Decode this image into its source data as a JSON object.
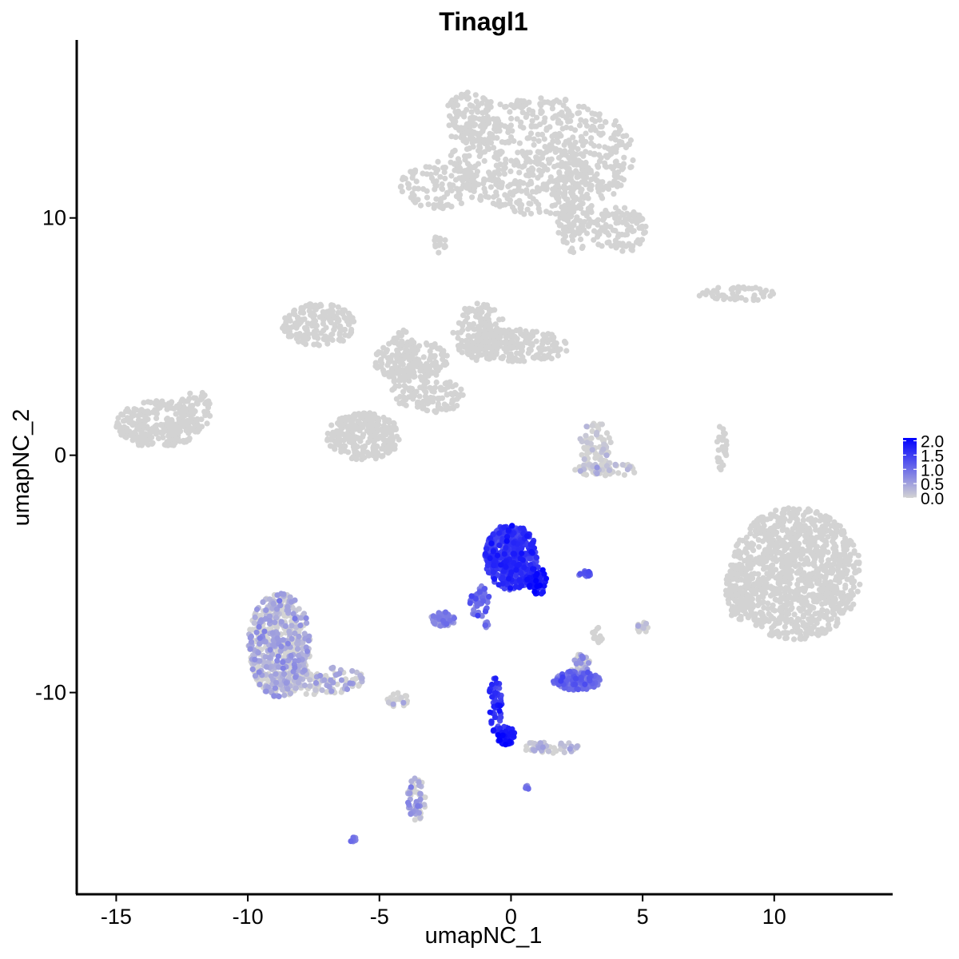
{
  "chart_data": {
    "type": "scatter",
    "title": "Tinagl1",
    "xlabel": "umapNC_1",
    "ylabel": "umapNC_2",
    "xlim": [
      -16.5,
      14.5
    ],
    "ylim": [
      -18.5,
      17.5
    ],
    "xticks": [
      -15,
      -10,
      -5,
      0,
      5,
      10
    ],
    "xtick_labels": [
      "-15",
      "-10",
      "-5",
      "0",
      "5",
      "10"
    ],
    "yticks": [
      -10,
      0,
      10
    ],
    "ytick_labels": [
      "-10",
      "0",
      "10"
    ],
    "grid": false,
    "legend_position": "right",
    "color_scale": {
      "low_color": "#d3d3d3",
      "high_color": "#0000ff",
      "min": 0,
      "max": 2.1,
      "breaks": [
        0.0,
        0.5,
        1.0,
        1.5,
        2.0
      ],
      "break_labels": [
        "0.0",
        "0.5",
        "1.0",
        "1.5",
        "2.0"
      ]
    },
    "clusters": [
      {
        "cx": 1.2,
        "cy": 12.6,
        "rx": 3.5,
        "ry": 2.5,
        "n": 650,
        "expr": 0.0
      },
      {
        "cx": -1.5,
        "cy": 14.2,
        "rx": 1.1,
        "ry": 1.1,
        "n": 120,
        "expr": 0.0
      },
      {
        "cx": 2.4,
        "cy": 10.7,
        "rx": 0.7,
        "ry": 2.2,
        "n": 140,
        "expr": 0.0
      },
      {
        "cx": 4.1,
        "cy": 9.5,
        "rx": 1.1,
        "ry": 1.0,
        "n": 110,
        "expr": 0.0
      },
      {
        "cx": -2.7,
        "cy": 11.4,
        "rx": 1.5,
        "ry": 1.0,
        "n": 110,
        "expr": 0.0
      },
      {
        "cx": 2.2,
        "cy": 9.6,
        "rx": 0.6,
        "ry": 0.4,
        "n": 20,
        "expr": 0.0
      },
      {
        "cx": -2.7,
        "cy": 8.9,
        "rx": 0.25,
        "ry": 0.4,
        "n": 15,
        "expr": 0.0
      },
      {
        "cx": -13.4,
        "cy": 1.3,
        "rx": 1.6,
        "ry": 1.0,
        "n": 260,
        "expr": 0.0
      },
      {
        "cx": -12.0,
        "cy": 1.9,
        "rx": 0.7,
        "ry": 0.8,
        "n": 50,
        "expr": 0.0
      },
      {
        "cx": -7.3,
        "cy": 5.5,
        "rx": 1.4,
        "ry": 0.9,
        "n": 180,
        "expr": 0.0
      },
      {
        "cx": -5.6,
        "cy": 0.8,
        "rx": 1.4,
        "ry": 1.0,
        "n": 280,
        "expr": 0.0
      },
      {
        "cx": -1.2,
        "cy": 5.2,
        "rx": 1.0,
        "ry": 1.2,
        "n": 180,
        "expr": 0.0
      },
      {
        "cx": 0.3,
        "cy": 4.6,
        "rx": 1.9,
        "ry": 0.7,
        "n": 180,
        "expr": 0.0
      },
      {
        "cx": -3.8,
        "cy": 4.0,
        "rx": 1.4,
        "ry": 0.9,
        "n": 160,
        "expr": 0.0
      },
      {
        "cx": -4.1,
        "cy": 3.7,
        "rx": 0.5,
        "ry": 1.8,
        "n": 90,
        "expr": 0.0
      },
      {
        "cx": -2.8,
        "cy": 2.5,
        "rx": 1.0,
        "ry": 0.7,
        "n": 90,
        "expr": 0.0
      },
      {
        "cx": 10.8,
        "cy": -5.0,
        "rx": 2.5,
        "ry": 2.8,
        "n": 1000,
        "expr": 0.0
      },
      {
        "cx": 8.7,
        "cy": -5.8,
        "rx": 0.6,
        "ry": 1.2,
        "n": 90,
        "expr": 0.0
      },
      {
        "cx": 8.0,
        "cy": 0.3,
        "rx": 0.2,
        "ry": 1.0,
        "n": 30,
        "expr": 0.0
      },
      {
        "cx": 8.6,
        "cy": 6.8,
        "rx": 1.5,
        "ry": 0.3,
        "n": 50,
        "expr": 0.0
      },
      {
        "cx": 3.2,
        "cy": 0.4,
        "rx": 0.6,
        "ry": 1.0,
        "n": 70,
        "expr": 0.05
      },
      {
        "cx": 3.6,
        "cy": -0.6,
        "rx": 1.2,
        "ry": 0.3,
        "n": 60,
        "expr": 0.15
      },
      {
        "cx": -8.8,
        "cy": -8.0,
        "rx": 1.2,
        "ry": 2.2,
        "n": 520,
        "expr": 0.4
      },
      {
        "cx": -7.2,
        "cy": -9.5,
        "rx": 1.7,
        "ry": 0.6,
        "n": 120,
        "expr": 0.2
      },
      {
        "cx": -4.3,
        "cy": -10.3,
        "rx": 0.4,
        "ry": 0.3,
        "n": 20,
        "expr": 0.1
      },
      {
        "cx": -3.6,
        "cy": -14.5,
        "rx": 0.35,
        "ry": 0.9,
        "n": 60,
        "expr": 0.5
      },
      {
        "cx": -6.0,
        "cy": -16.2,
        "rx": 0.15,
        "ry": 0.1,
        "n": 10,
        "expr": 0.8
      },
      {
        "cx": 0.0,
        "cy": -4.3,
        "rx": 1.0,
        "ry": 1.4,
        "n": 500,
        "expr": 1.5
      },
      {
        "cx": 1.0,
        "cy": -5.3,
        "rx": 0.35,
        "ry": 0.6,
        "n": 60,
        "expr": 1.8
      },
      {
        "cx": -1.2,
        "cy": -6.2,
        "rx": 0.4,
        "ry": 0.7,
        "n": 50,
        "expr": 1.0
      },
      {
        "cx": -2.6,
        "cy": -6.9,
        "rx": 0.5,
        "ry": 0.3,
        "n": 60,
        "expr": 0.7
      },
      {
        "cx": 2.5,
        "cy": -9.5,
        "rx": 0.9,
        "ry": 0.4,
        "n": 150,
        "expr": 0.9
      },
      {
        "cx": 2.6,
        "cy": -8.8,
        "rx": 0.4,
        "ry": 0.4,
        "n": 30,
        "expr": 0.5
      },
      {
        "cx": 2.8,
        "cy": -5.0,
        "rx": 0.25,
        "ry": 0.12,
        "n": 20,
        "expr": 1.2
      },
      {
        "cx": -0.6,
        "cy": -10.5,
        "rx": 0.25,
        "ry": 1.2,
        "n": 50,
        "expr": 1.6
      },
      {
        "cx": -0.2,
        "cy": -11.8,
        "rx": 0.35,
        "ry": 0.4,
        "n": 50,
        "expr": 1.8
      },
      {
        "cx": 1.5,
        "cy": -12.3,
        "rx": 1.2,
        "ry": 0.25,
        "n": 50,
        "expr": 0.2
      },
      {
        "cx": 0.6,
        "cy": -14.0,
        "rx": 0.1,
        "ry": 0.1,
        "n": 6,
        "expr": 0.8
      },
      {
        "cx": 5.0,
        "cy": -7.3,
        "rx": 0.2,
        "ry": 0.3,
        "n": 15,
        "expr": 0.1
      },
      {
        "cx": 3.3,
        "cy": -7.5,
        "rx": 0.2,
        "ry": 0.4,
        "n": 12,
        "expr": 0.0
      },
      {
        "cx": -0.9,
        "cy": -7.2,
        "rx": 0.1,
        "ry": 0.2,
        "n": 6,
        "expr": 0.8
      }
    ]
  }
}
